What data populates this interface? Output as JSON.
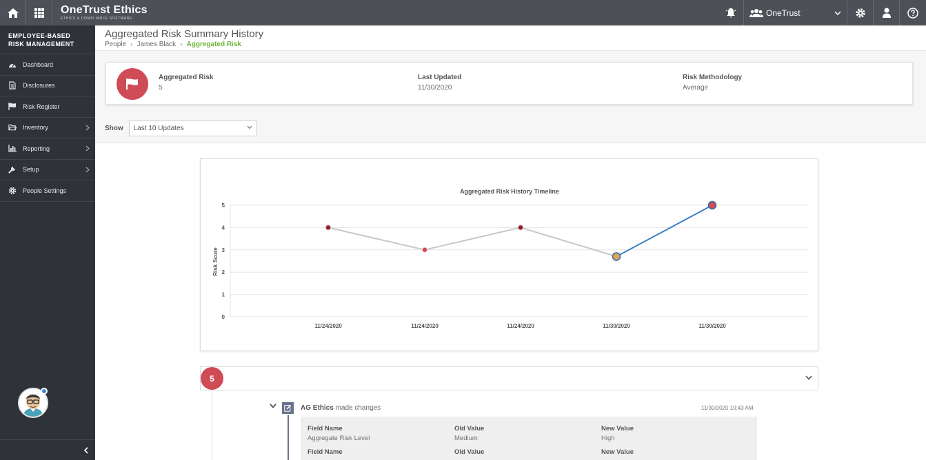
{
  "app": {
    "brand_name": "OneTrust Ethics",
    "brand_sub": "ETHICS & COMPLIANCE SOFTWARE",
    "org_name": "OneTrust"
  },
  "sidebar": {
    "title": "EMPLOYEE-BASED RISK MANAGEMENT",
    "items": [
      {
        "label": "Dashboard",
        "icon": "dashboard-icon",
        "has_arrow": false
      },
      {
        "label": "Disclosures",
        "icon": "document-icon",
        "has_arrow": false
      },
      {
        "label": "Risk Register",
        "icon": "flag-icon",
        "has_arrow": false
      },
      {
        "label": "Inventory",
        "icon": "folder-icon",
        "has_arrow": true
      },
      {
        "label": "Reporting",
        "icon": "bar-chart-icon",
        "has_arrow": true
      },
      {
        "label": "Setup",
        "icon": "wrench-icon",
        "has_arrow": true
      },
      {
        "label": "People Settings",
        "icon": "gear-icon",
        "has_arrow": false
      }
    ]
  },
  "page": {
    "title": "Aggregated Risk Summary History",
    "breadcrumb": [
      "People",
      "James Black",
      "Aggregated Risk"
    ]
  },
  "summary": {
    "aggregated_risk_label": "Aggregated Risk",
    "aggregated_risk_value": "5",
    "last_updated_label": "Last Updated",
    "last_updated_value": "11/30/2020",
    "methodology_label": "Risk Methodology",
    "methodology_value": "Average"
  },
  "filter": {
    "show_label": "Show",
    "selected": "Last 10 Updates"
  },
  "chart_data": {
    "type": "line",
    "title": "Aggregated Risk History Timeline",
    "xlabel": "",
    "ylabel": "Risk Score",
    "categories": [
      "11/24/2020",
      "11/24/2020",
      "11/24/2020",
      "11/30/2020",
      "11/30/2020"
    ],
    "values": [
      4,
      3,
      4,
      2.7,
      5
    ],
    "ylim": [
      0,
      5
    ],
    "yticks": [
      0,
      1,
      2,
      3,
      4,
      5
    ],
    "grid": true,
    "colors": {
      "history_line": "#c8c8c8",
      "current_line": "#3b7fc4",
      "point": "#8b1f2b",
      "point_alt": "#d6424e",
      "highlight_point": "#e0a653",
      "current_point": "#cf4b55"
    }
  },
  "history": {
    "score": "5",
    "entry": {
      "author": "AG Ethics",
      "action": "made changes",
      "timestamp": "11/30/2020 10:43 AM",
      "headers": {
        "field": "Field Name",
        "old": "Old Value",
        "new": "New Value"
      },
      "rows": [
        {
          "field": "Aggregate Risk Level",
          "old": "Medium",
          "new": "High"
        },
        {
          "field": "",
          "old": "",
          "new": ""
        }
      ]
    }
  }
}
